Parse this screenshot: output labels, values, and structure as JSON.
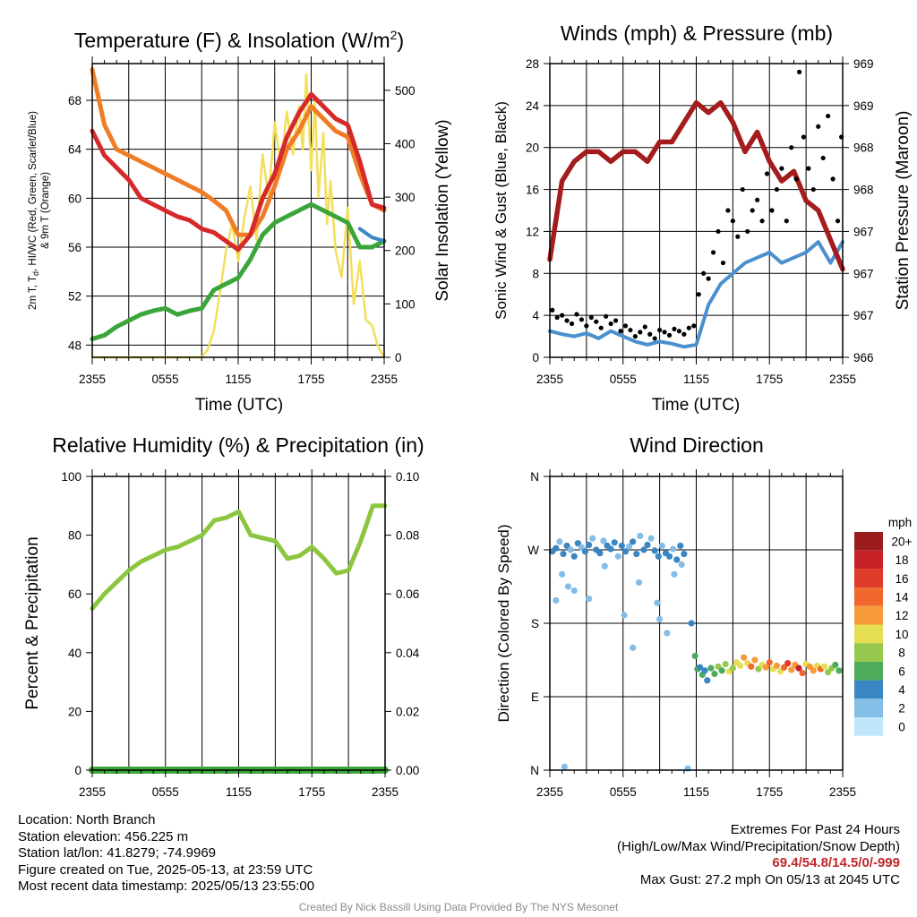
{
  "colors": {
    "temp": "#d62a2a",
    "dewpoint": "#3aa63a",
    "temp9m": "#f07d26",
    "hiwc": "#3d87c6",
    "solar": "#f4df5a",
    "wind": "#4a90cf",
    "gust": "#000000",
    "pressure": "#a51c1c",
    "rh": "#8cc63f",
    "precip": "#3aa63a"
  },
  "x_ticks": [
    "2355",
    "0555",
    "1155",
    "1755",
    "2355"
  ],
  "chart_data": [
    {
      "type": "line",
      "title": "Temperature (F) & Insolation (W/m²)",
      "title_main": "Temperature (F) & Insolation (W/m",
      "title_sup": "2",
      "title_end": ")",
      "xlabel": "Time (UTC)",
      "ylabel_line1": "2m T, T",
      "ylabel_sub": "d",
      "ylabel_rest": ", HI/WC (Red, Green, Scarlet/Blue)",
      "ylabel_line2": "& 9m T (Orange)",
      "y2label": "Solar Insolation (Yellow)",
      "ylim": [
        47,
        71
      ],
      "y_ticks": [
        48,
        52,
        56,
        60,
        64,
        68
      ],
      "y2lim": [
        0,
        550
      ],
      "y2_ticks": [
        0,
        100,
        200,
        300,
        400,
        500
      ],
      "x_hours": [
        0,
        1,
        2,
        3,
        4,
        5,
        6,
        7,
        8,
        9,
        10,
        11,
        12,
        13,
        14,
        15,
        16,
        17,
        18,
        19,
        20,
        21,
        22,
        23,
        24
      ],
      "series": [
        {
          "key": "temp",
          "values": [
            65.5,
            63.5,
            62.5,
            61.5,
            60,
            59.5,
            59,
            58.5,
            58.2,
            57.5,
            57.2,
            56.5,
            55.8,
            57,
            60,
            62,
            65,
            67,
            68.5,
            67.5,
            66.5,
            66,
            63,
            59.5,
            59.2
          ]
        },
        {
          "key": "dewpoint",
          "values": [
            48.5,
            48.8,
            49.5,
            50,
            50.5,
            50.8,
            51,
            50.5,
            50.8,
            51,
            52.5,
            53,
            53.5,
            55,
            57,
            58,
            58.5,
            59,
            59.5,
            59,
            58.5,
            58,
            56,
            56,
            56.5
          ]
        },
        {
          "key": "temp9m",
          "values": [
            70.5,
            66,
            64,
            63.5,
            63,
            62.5,
            62,
            61.5,
            61,
            60.5,
            59.8,
            59,
            57,
            57,
            58.5,
            61,
            64,
            65.5,
            67.5,
            66.5,
            65.5,
            65,
            62,
            59.5,
            59
          ]
        },
        {
          "key": "hiwc",
          "values": [
            null,
            null,
            null,
            null,
            null,
            null,
            null,
            null,
            null,
            null,
            null,
            null,
            null,
            null,
            null,
            null,
            null,
            null,
            null,
            null,
            null,
            null,
            57.5,
            56.8,
            56.5
          ]
        }
      ],
      "solar_x": [
        0,
        9,
        9.5,
        10,
        10.5,
        11,
        11.5,
        12,
        12.5,
        13,
        13.5,
        14,
        14.5,
        15,
        15.5,
        16,
        16.5,
        17,
        17.3,
        17.6,
        18,
        18.3,
        18.6,
        19,
        19.3,
        19.6,
        20,
        20.5,
        21,
        21.5,
        22,
        22.5,
        23,
        23.5,
        24
      ],
      "solar_values": [
        0,
        0,
        15,
        50,
        120,
        200,
        250,
        180,
        260,
        320,
        220,
        380,
        300,
        440,
        360,
        460,
        380,
        470,
        390,
        530,
        350,
        480,
        300,
        420,
        250,
        330,
        200,
        150,
        280,
        100,
        180,
        70,
        60,
        20,
        0
      ]
    },
    {
      "type": "line",
      "title": "Winds (mph) & Pressure (mb)",
      "xlabel": "Time (UTC)",
      "ylabel": "Sonic Wind & Gust (Blue, Black)",
      "y2label": "Station Pressure (Maroon)",
      "ylim": [
        0,
        28
      ],
      "y_ticks": [
        0,
        4,
        8,
        12,
        16,
        20,
        24,
        28
      ],
      "y2lim": [
        966,
        969
      ],
      "y2_ticks": [
        "966",
        "967",
        "967",
        "967",
        "968",
        "968",
        "969",
        "969"
      ],
      "x_hours": [
        0,
        1,
        2,
        3,
        4,
        5,
        6,
        7,
        8,
        9,
        10,
        11,
        12,
        13,
        14,
        15,
        16,
        17,
        18,
        19,
        20,
        21,
        22,
        23,
        24
      ],
      "series": [
        {
          "key": "wind",
          "values": [
            2.5,
            2.2,
            2,
            2.3,
            1.8,
            2.5,
            2,
            1.5,
            1.2,
            1.5,
            1.3,
            1,
            1.2,
            5,
            7,
            8,
            9,
            9.5,
            10,
            9,
            9.5,
            10,
            11,
            9,
            11
          ]
        },
        {
          "key": "pressure",
          "values": [
            967.0,
            967.8,
            968.0,
            968.1,
            968.1,
            968.0,
            968.1,
            968.1,
            968.0,
            968.2,
            968.2,
            968.4,
            968.6,
            968.5,
            968.6,
            968.4,
            968.1,
            968.3,
            968.0,
            967.8,
            967.9,
            967.6,
            967.5,
            967.2,
            966.9
          ]
        }
      ],
      "gust_x": [
        0.2,
        0.6,
        1,
        1.4,
        1.8,
        2.2,
        2.6,
        3,
        3.4,
        3.8,
        4.2,
        4.6,
        5,
        5.4,
        5.8,
        6.2,
        6.6,
        7,
        7.4,
        7.8,
        8.2,
        8.6,
        9,
        9.4,
        9.8,
        10.2,
        10.6,
        11,
        11.4,
        11.8,
        12.2,
        12.6,
        13,
        13.4,
        13.8,
        14.2,
        14.6,
        15,
        15.4,
        15.8,
        16.2,
        16.6,
        17,
        17.4,
        17.8,
        18.2,
        18.6,
        19,
        19.4,
        19.8,
        20.2,
        20.45,
        20.8,
        21.2,
        21.6,
        22,
        22.4,
        22.8,
        23.2,
        23.6,
        23.9
      ],
      "gust_values": [
        4.5,
        3.8,
        4,
        3.5,
        3.2,
        4.1,
        3.6,
        3,
        3.8,
        3.4,
        2.8,
        3.9,
        3.2,
        3.5,
        2.5,
        3,
        2.6,
        2,
        2.4,
        2.9,
        2.2,
        1.8,
        2.6,
        2.4,
        2.1,
        2.7,
        2.5,
        2.2,
        2.8,
        3,
        6,
        8,
        7.5,
        10,
        12,
        9,
        14,
        13,
        11.5,
        16,
        12,
        14,
        15,
        13,
        17.5,
        14,
        16,
        18,
        13,
        20,
        17,
        27.2,
        21,
        18,
        16,
        22,
        19,
        23,
        17,
        13,
        21
      ]
    },
    {
      "type": "line",
      "title": "Relative Humidity (%) & Precipitation (in)",
      "xlabel": "",
      "ylabel": "Percent & Precipitation",
      "ylim": [
        0,
        100
      ],
      "y_ticks": [
        0,
        20,
        40,
        60,
        80,
        100
      ],
      "y2lim": [
        0,
        0.1
      ],
      "y2_ticks": [
        "0.00",
        "0.02",
        "0.04",
        "0.06",
        "0.08",
        "0.10"
      ],
      "x_hours": [
        0,
        1,
        2,
        3,
        4,
        5,
        6,
        7,
        8,
        9,
        10,
        11,
        12,
        13,
        14,
        15,
        16,
        17,
        18,
        19,
        20,
        21,
        22,
        23,
        24
      ],
      "series": [
        {
          "key": "rh",
          "values": [
            55,
            60,
            64,
            68,
            71,
            73,
            75,
            76,
            78,
            80,
            85,
            86,
            88,
            80,
            79,
            78,
            72,
            73,
            76,
            72,
            67,
            68,
            78,
            90,
            90
          ]
        },
        {
          "key": "precip",
          "values": [
            0,
            0,
            0,
            0,
            0,
            0,
            0,
            0,
            0,
            0,
            0,
            0,
            0,
            0,
            0,
            0,
            0,
            0,
            0,
            0,
            0,
            0,
            0,
            0,
            0
          ]
        }
      ]
    },
    {
      "type": "scatter",
      "title": "Wind Direction",
      "xlabel": "",
      "ylabel": "Direction (Colored By Speed)",
      "ylim": [
        0,
        360
      ],
      "y_ticks": [
        "N",
        "E",
        "S",
        "W",
        "N"
      ],
      "colorbar_unit": "mph",
      "colorbar_labels": [
        "20+",
        "18",
        "16",
        "14",
        "12",
        "10",
        "8",
        "6",
        "4",
        "2",
        "0"
      ],
      "colorbar_colors": [
        "#9b1c1c",
        "#c62226",
        "#de3b2a",
        "#f0682e",
        "#f69a3c",
        "#e6df54",
        "#96c84e",
        "#4fab5c",
        "#3a86c2",
        "#84bde6",
        "#bfe6fb"
      ],
      "x": [
        0.2,
        0.5,
        0.8,
        1.1,
        1.4,
        1.7,
        2.0,
        2.3,
        2.6,
        2.9,
        3.2,
        3.5,
        3.8,
        4.1,
        4.4,
        4.7,
        5.0,
        5.3,
        5.6,
        5.9,
        6.2,
        6.5,
        6.8,
        7.1,
        7.4,
        7.7,
        8.0,
        8.3,
        8.6,
        8.9,
        9.2,
        9.5,
        9.8,
        10.1,
        10.4,
        10.7,
        11.0,
        1.0,
        2.0,
        3.2,
        4.5,
        6.1,
        7.3,
        8.8,
        9.6,
        10.2,
        0.5,
        1.5,
        6.8,
        9.0,
        10.8,
        11.6,
        11.9,
        12.1,
        12.3,
        12.5,
        12.7,
        12.9,
        13.2,
        13.5,
        13.8,
        14.1,
        14.4,
        14.7,
        15.0,
        15.3,
        15.6,
        15.9,
        16.2,
        16.5,
        16.8,
        17.1,
        17.4,
        17.7,
        18.0,
        18.3,
        18.6,
        18.9,
        19.2,
        19.5,
        19.8,
        20.1,
        20.4,
        20.7,
        21.0,
        21.3,
        21.6,
        21.9,
        22.2,
        22.5,
        22.8,
        23.1,
        23.4,
        23.7,
        1.2,
        11.3
      ],
      "direction": [
        268,
        272,
        280,
        265,
        275,
        270,
        262,
        278,
        273,
        268,
        276,
        284,
        270,
        266,
        281,
        275,
        271,
        279,
        262,
        275,
        268,
        274,
        280,
        265,
        287,
        270,
        276,
        284,
        269,
        262,
        275,
        266,
        262,
        271,
        258,
        275,
        265,
        240,
        220,
        210,
        250,
        190,
        230,
        205,
        168,
        240,
        208,
        225,
        150,
        185,
        252,
        180,
        140,
        124,
        126,
        117,
        122,
        110,
        125,
        118,
        127,
        122,
        130,
        121,
        125,
        132,
        128,
        138,
        131,
        127,
        135,
        124,
        129,
        126,
        132,
        124,
        128,
        121,
        126,
        131,
        123,
        129,
        125,
        119,
        130,
        127,
        122,
        128,
        124,
        127,
        120,
        125,
        129,
        122,
        4,
        2
      ],
      "speed": [
        2,
        2,
        1.5,
        2,
        2,
        1.8,
        2,
        2,
        1.5,
        2,
        2,
        1.8,
        2,
        2,
        1.5,
        2,
        2,
        2,
        1.8,
        2,
        2,
        1.5,
        2,
        2,
        1.2,
        2,
        2,
        1.8,
        2,
        2,
        1.5,
        2,
        2,
        1.8,
        2,
        2,
        2,
        0.8,
        1,
        0.8,
        0.8,
        0.8,
        0.8,
        1,
        0.8,
        0.8,
        0.6,
        0.8,
        0.8,
        1.2,
        1.5,
        2.5,
        4,
        4.5,
        3.5,
        4.2,
        3.8,
        3.2,
        5,
        4.5,
        7,
        5.5,
        6,
        8.5,
        7,
        9,
        8,
        10,
        9.5,
        12,
        11,
        7.5,
        9,
        11,
        13,
        8,
        10,
        9,
        12,
        14,
        10,
        11,
        16,
        13,
        9,
        11,
        10,
        8,
        12,
        9,
        7,
        6,
        5,
        4,
        0.5,
        0.5
      ]
    }
  ],
  "info_left": [
    "Location: North Branch",
    "Station elevation: 456.225 m",
    "Station lat/lon: 41.8279; -74.9969",
    "Figure created on Tue, 2025-05-13, at 23:59 UTC",
    "Most recent data timestamp: 2025/05/13 23:55:00"
  ],
  "extremes": {
    "title": "Extremes For Past 24 Hours",
    "subtitle": "(High/Low/Max Wind/Precipitation/Snow Depth)",
    "values": "69.4/54.8/14.5/0/-999",
    "max_gust": "Max Gust: 27.2 mph On 05/13 at 2045 UTC"
  },
  "credit": "Created By Nick Bassill Using Data Provided By The NYS Mesonet"
}
